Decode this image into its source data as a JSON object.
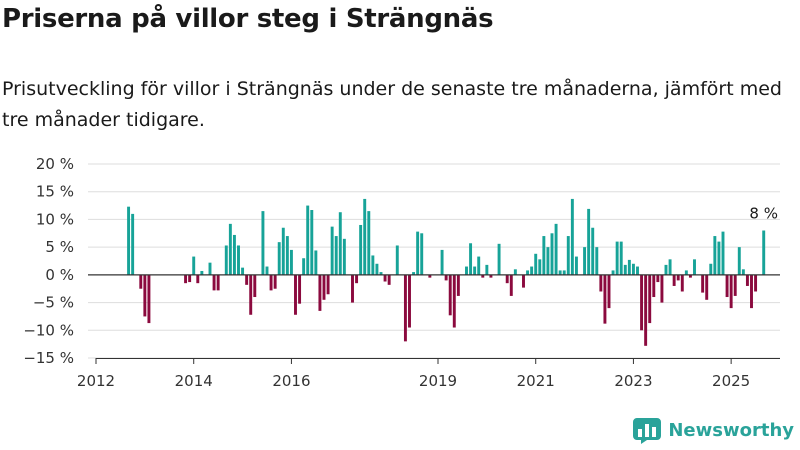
{
  "title": "Priserna på villor steg i Strängnäs",
  "subtitle": "Prisutveckling för villor i Strängnäs under de senaste tre månaderna, jämfört med tre månader tidigare.",
  "brand": {
    "name": "Newsworthy",
    "icon": "bar-chart-logo-icon"
  },
  "colors": {
    "positive": "#17a398",
    "negative": "#8b0a3e",
    "grid": "#dddddd",
    "axis": "#333333",
    "text": "#333333"
  },
  "chart_data": {
    "type": "bar",
    "x_start": "2012-09",
    "y_ticks": [
      20,
      15,
      10,
      5,
      0,
      -5,
      -10,
      -15
    ],
    "y_tick_labels": [
      "20 %",
      "15 %",
      "10 %",
      "5 %",
      "0 %",
      "−5 %",
      "−10 %",
      "−15 %"
    ],
    "ylim": [
      -15,
      20
    ],
    "x_ticks": [
      "2012",
      "2014",
      "2016",
      "2019",
      "2021",
      "2023",
      "2025"
    ],
    "annotation": {
      "text": "8 %",
      "target": "last"
    },
    "grid": true,
    "values": [
      12.3,
      11,
      0,
      -2.5,
      -7.5,
      -8.7,
      0,
      0,
      0,
      0,
      0,
      0,
      0,
      0,
      -1.5,
      -1.3,
      3.3,
      -1.5,
      0.7,
      0,
      2.2,
      -2.8,
      -2.8,
      0,
      5.3,
      9.2,
      7.2,
      5.3,
      1.3,
      -1.8,
      -7.2,
      -4,
      0,
      11.5,
      1.5,
      -2.8,
      -2.5,
      5.9,
      8.5,
      7,
      4.5,
      -7.2,
      -5.2,
      3,
      12.5,
      11.7,
      4.4,
      -6.5,
      -4.5,
      -3.5,
      8.7,
      7,
      11.3,
      6.5,
      0,
      -5,
      -1.5,
      9,
      13.7,
      11.5,
      3.5,
      2,
      0.5,
      -1.2,
      -1.8,
      0,
      5.3,
      0,
      -12,
      -9.5,
      0.5,
      7.8,
      7.5,
      0,
      -0.5,
      0,
      0,
      4.5,
      -1,
      -7.3,
      -9.5,
      -3.8,
      0,
      1.5,
      5.7,
      1.5,
      3.3,
      -0.5,
      1.8,
      -0.5,
      0,
      5.6,
      0,
      -1.5,
      -3.8,
      1,
      0,
      -2.3,
      0.8,
      1.5,
      3.8,
      2.8,
      7,
      5,
      7.5,
      9.2,
      0.8,
      0.8,
      7,
      13.7,
      3.3,
      0,
      5,
      11.9,
      8.5,
      5,
      -3,
      -8.8,
      -6,
      0.8,
      6,
      6,
      1.8,
      2.7,
      2,
      1.5,
      -10,
      -12.8,
      -8.7,
      -4,
      -1.3,
      -5,
      1.8,
      2.8,
      -2,
      -1,
      -3,
      0.8,
      -0.5,
      2.8,
      0,
      -3.2,
      -4.5,
      2,
      7,
      6,
      7.8,
      -4,
      -6,
      -3.8,
      5,
      1,
      -2,
      -6,
      -3,
      0,
      8
    ]
  }
}
